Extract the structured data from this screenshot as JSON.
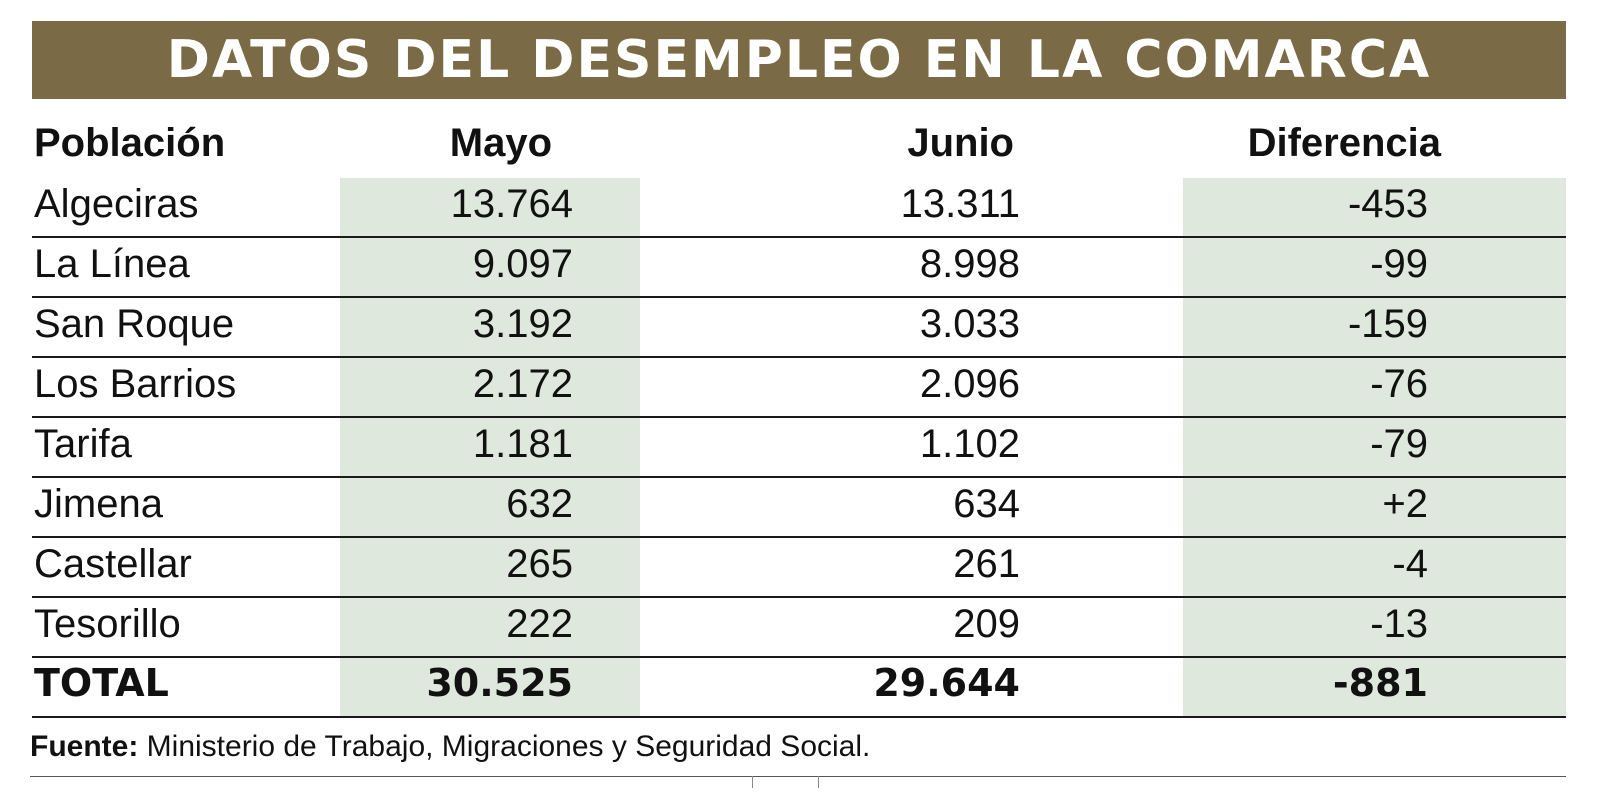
{
  "title": "DATOS DEL DESEMPLEO EN LA COMARCA",
  "chart_data": {
    "type": "table",
    "title": "DATOS DEL DESEMPLEO EN LA COMARCA",
    "columns": [
      "Población",
      "Mayo",
      "Junio",
      "Diferencia"
    ],
    "rows": [
      {
        "poblacion": "Algeciras",
        "mayo": "13.764",
        "junio": "13.311",
        "diferencia": "-453"
      },
      {
        "poblacion": "La Línea",
        "mayo": "9.097",
        "junio": "8.998",
        "diferencia": "-99"
      },
      {
        "poblacion": "San Roque",
        "mayo": "3.192",
        "junio": "3.033",
        "diferencia": "-159"
      },
      {
        "poblacion": "Los Barrios",
        "mayo": "2.172",
        "junio": "2.096",
        "diferencia": "-76"
      },
      {
        "poblacion": "Tarifa",
        "mayo": "1.181",
        "junio": "1.102",
        "diferencia": "-79"
      },
      {
        "poblacion": "Jimena",
        "mayo": "632",
        "junio": "634",
        "diferencia": "+2"
      },
      {
        "poblacion": "Castellar",
        "mayo": "265",
        "junio": "261",
        "diferencia": "-4"
      },
      {
        "poblacion": "Tesorillo",
        "mayo": "222",
        "junio": "209",
        "diferencia": "-13"
      }
    ],
    "total": {
      "poblacion": "TOTAL",
      "mayo": "30.525",
      "junio": "29.644",
      "diferencia": "-881"
    }
  },
  "footer": {
    "label": "Fuente:",
    "text": " Ministerio de Trabajo, Migraciones y Seguridad Social."
  },
  "colors": {
    "title_bg": "#7a6a45",
    "shade": "#dfe8dc"
  }
}
